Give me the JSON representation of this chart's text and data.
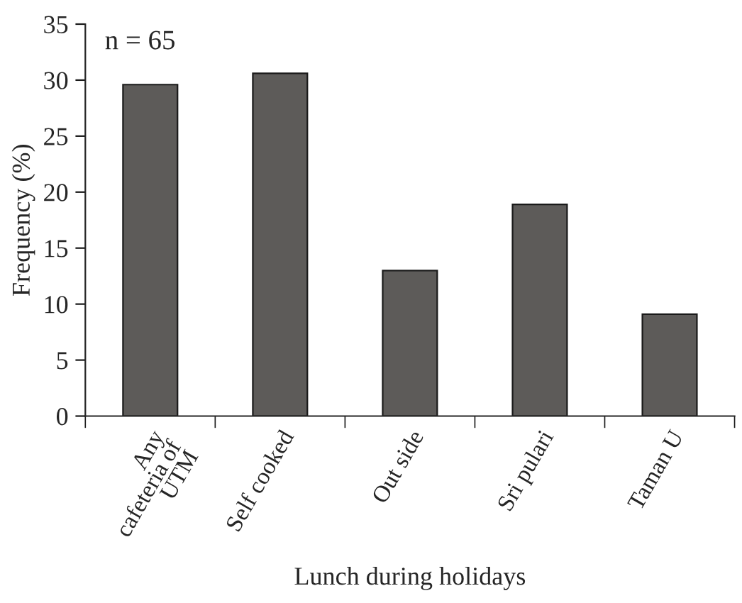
{
  "chart_data": {
    "type": "bar",
    "xlabel": "Lunch during holidays",
    "ylabel": "Frequency (%)",
    "categories": [
      "Any\ncafeteria of\nUTM",
      "Self cooked",
      "Out side",
      "Sri pulari",
      "Taman U"
    ],
    "values": [
      29.6,
      30.6,
      13.0,
      18.9,
      9.1
    ],
    "color": "#5d5b59",
    "ylim": [
      0,
      35
    ],
    "yticks": [
      0,
      5,
      10,
      15,
      20,
      25,
      30,
      35
    ],
    "annotations": [
      "n = 65"
    ],
    "grid": false,
    "legend": false
  }
}
